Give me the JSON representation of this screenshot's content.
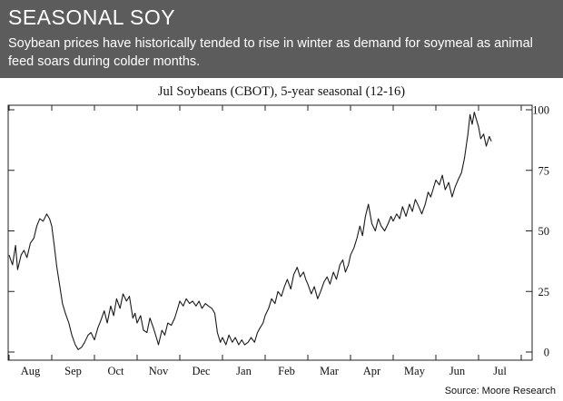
{
  "header": {
    "title": "SEASONAL SOY",
    "subtitle": "Soybean prices have historically tended to rise in winter as demand for soymeal as animal feed soars during colder months."
  },
  "source": "Source: Moore Research",
  "colors": {
    "header_bg": "#5c5c5c",
    "line": "#1a1a1a"
  },
  "chart_data": {
    "type": "line",
    "title": "Jul Soybeans (CBOT), 5-year seasonal (12-16)",
    "xlabel": "",
    "ylabel": "",
    "grid": false,
    "x_categories": [
      "Aug",
      "Sep",
      "Oct",
      "Nov",
      "Dec",
      "Jan",
      "Feb",
      "Mar",
      "Apr",
      "May",
      "Jun",
      "Jul"
    ],
    "y_ticks": [
      0,
      25,
      50,
      75,
      100
    ],
    "ylim": [
      0,
      100
    ],
    "y_axis_side": "right",
    "series": [
      {
        "values": [
          [
            0.0,
            40
          ],
          [
            0.08,
            36
          ],
          [
            0.15,
            44
          ],
          [
            0.2,
            34
          ],
          [
            0.28,
            40
          ],
          [
            0.35,
            42
          ],
          [
            0.42,
            39
          ],
          [
            0.5,
            45
          ],
          [
            0.58,
            47
          ],
          [
            0.65,
            52
          ],
          [
            0.72,
            55
          ],
          [
            0.8,
            54
          ],
          [
            0.88,
            57
          ],
          [
            0.95,
            55
          ],
          [
            1.0,
            52
          ],
          [
            1.05,
            45
          ],
          [
            1.12,
            35
          ],
          [
            1.18,
            28
          ],
          [
            1.25,
            20
          ],
          [
            1.32,
            16
          ],
          [
            1.4,
            12
          ],
          [
            1.47,
            7
          ],
          [
            1.55,
            3
          ],
          [
            1.62,
            1
          ],
          [
            1.7,
            2
          ],
          [
            1.77,
            4
          ],
          [
            1.85,
            7
          ],
          [
            1.92,
            8
          ],
          [
            2.0,
            5
          ],
          [
            2.08,
            10
          ],
          [
            2.15,
            13
          ],
          [
            2.23,
            17
          ],
          [
            2.3,
            12
          ],
          [
            2.38,
            19
          ],
          [
            2.45,
            15
          ],
          [
            2.52,
            22
          ],
          [
            2.6,
            18
          ],
          [
            2.67,
            24
          ],
          [
            2.75,
            21
          ],
          [
            2.82,
            23
          ],
          [
            2.9,
            14
          ],
          [
            2.95,
            16
          ],
          [
            3.0,
            12
          ],
          [
            3.08,
            15
          ],
          [
            3.15,
            9
          ],
          [
            3.23,
            8
          ],
          [
            3.3,
            14
          ],
          [
            3.38,
            10
          ],
          [
            3.45,
            6
          ],
          [
            3.5,
            3
          ],
          [
            3.58,
            9
          ],
          [
            3.65,
            7
          ],
          [
            3.72,
            12
          ],
          [
            3.8,
            11
          ],
          [
            3.88,
            14
          ],
          [
            3.95,
            18
          ],
          [
            4.0,
            21
          ],
          [
            4.08,
            19
          ],
          [
            4.15,
            22
          ],
          [
            4.23,
            20
          ],
          [
            4.3,
            21
          ],
          [
            4.38,
            19
          ],
          [
            4.45,
            21
          ],
          [
            4.52,
            18
          ],
          [
            4.6,
            20
          ],
          [
            4.67,
            19
          ],
          [
            4.75,
            18
          ],
          [
            4.82,
            16
          ],
          [
            4.88,
            8
          ],
          [
            4.95,
            4
          ],
          [
            5.0,
            6
          ],
          [
            5.08,
            3
          ],
          [
            5.15,
            7
          ],
          [
            5.23,
            4
          ],
          [
            5.3,
            6
          ],
          [
            5.38,
            3
          ],
          [
            5.45,
            5
          ],
          [
            5.52,
            3
          ],
          [
            5.6,
            4
          ],
          [
            5.67,
            6
          ],
          [
            5.75,
            4
          ],
          [
            5.82,
            8
          ],
          [
            5.88,
            10
          ],
          [
            5.95,
            12
          ],
          [
            6.0,
            15
          ],
          [
            6.08,
            18
          ],
          [
            6.15,
            22
          ],
          [
            6.23,
            20
          ],
          [
            6.3,
            25
          ],
          [
            6.38,
            23
          ],
          [
            6.45,
            27
          ],
          [
            6.52,
            30
          ],
          [
            6.6,
            26
          ],
          [
            6.67,
            32
          ],
          [
            6.75,
            35
          ],
          [
            6.82,
            31
          ],
          [
            6.9,
            33
          ],
          [
            6.95,
            30
          ],
          [
            7.0,
            28
          ],
          [
            7.08,
            24
          ],
          [
            7.15,
            27
          ],
          [
            7.23,
            22
          ],
          [
            7.3,
            25
          ],
          [
            7.38,
            29
          ],
          [
            7.45,
            31
          ],
          [
            7.52,
            28
          ],
          [
            7.6,
            33
          ],
          [
            7.67,
            30
          ],
          [
            7.75,
            36
          ],
          [
            7.82,
            38
          ],
          [
            7.88,
            33
          ],
          [
            7.95,
            36
          ],
          [
            8.0,
            40
          ],
          [
            8.08,
            43
          ],
          [
            8.15,
            47
          ],
          [
            8.22,
            52
          ],
          [
            8.28,
            48
          ],
          [
            8.35,
            56
          ],
          [
            8.42,
            61
          ],
          [
            8.5,
            53
          ],
          [
            8.58,
            50
          ],
          [
            8.65,
            55
          ],
          [
            8.72,
            52
          ],
          [
            8.8,
            50
          ],
          [
            8.88,
            53
          ],
          [
            8.95,
            56
          ],
          [
            9.0,
            54
          ],
          [
            9.08,
            57
          ],
          [
            9.15,
            55
          ],
          [
            9.22,
            60
          ],
          [
            9.3,
            56
          ],
          [
            9.38,
            61
          ],
          [
            9.45,
            58
          ],
          [
            9.52,
            63
          ],
          [
            9.6,
            60
          ],
          [
            9.67,
            57
          ],
          [
            9.75,
            61
          ],
          [
            9.82,
            66
          ],
          [
            9.88,
            64
          ],
          [
            9.95,
            68
          ],
          [
            10.0,
            71
          ],
          [
            10.08,
            69
          ],
          [
            10.15,
            73
          ],
          [
            10.22,
            67
          ],
          [
            10.3,
            70
          ],
          [
            10.38,
            64
          ],
          [
            10.45,
            68
          ],
          [
            10.52,
            71
          ],
          [
            10.6,
            74
          ],
          [
            10.67,
            80
          ],
          [
            10.75,
            90
          ],
          [
            10.8,
            98
          ],
          [
            10.85,
            94
          ],
          [
            10.9,
            99
          ],
          [
            10.95,
            96
          ],
          [
            11.0,
            93
          ],
          [
            11.05,
            88
          ],
          [
            11.12,
            90
          ],
          [
            11.18,
            85
          ],
          [
            11.25,
            89
          ],
          [
            11.3,
            87
          ]
        ]
      }
    ]
  }
}
